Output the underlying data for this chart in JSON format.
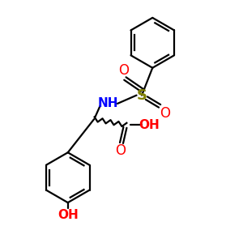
{
  "bg_color": "#ffffff",
  "black": "#000000",
  "blue": "#0000ff",
  "red": "#ff0000",
  "sulfur_color": "#808000",
  "line_width": 1.6,
  "figsize": [
    3.0,
    3.0
  ],
  "dpi": 100,
  "xlim": [
    0,
    10
  ],
  "ylim": [
    0,
    10
  ]
}
